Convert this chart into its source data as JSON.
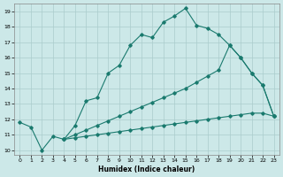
{
  "xlabel": "Humidex (Indice chaleur)",
  "bg_color": "#cce8e8",
  "grid_color": "#aacccc",
  "line_color": "#1a7a6e",
  "xlim": [
    -0.5,
    23.5
  ],
  "ylim": [
    9.7,
    19.5
  ],
  "xticks": [
    0,
    1,
    2,
    3,
    4,
    5,
    6,
    7,
    8,
    9,
    10,
    11,
    12,
    13,
    14,
    15,
    16,
    17,
    18,
    19,
    20,
    21,
    22,
    23
  ],
  "yticks": [
    10,
    11,
    12,
    13,
    14,
    15,
    16,
    17,
    18,
    19
  ],
  "line1_x": [
    0,
    1,
    2,
    3,
    4,
    5,
    6,
    7,
    8,
    9,
    10,
    11,
    12,
    13,
    14,
    15,
    16,
    17,
    18,
    19,
    20,
    21,
    22,
    23
  ],
  "line1_y": [
    11.8,
    11.5,
    10.0,
    10.9,
    10.7,
    11.6,
    13.2,
    13.4,
    15.0,
    15.5,
    16.8,
    17.5,
    17.3,
    18.3,
    18.7,
    19.2,
    18.1,
    17.9,
    17.5,
    16.8,
    16.0,
    15.0,
    14.2,
    12.2
  ],
  "line2_x": [
    4,
    5,
    6,
    7,
    8,
    9,
    10,
    11,
    12,
    13,
    14,
    15,
    16,
    17,
    18,
    19,
    20,
    21,
    22,
    23
  ],
  "line2_y": [
    10.7,
    11.0,
    11.3,
    11.6,
    11.9,
    12.2,
    12.5,
    12.8,
    13.1,
    13.4,
    13.7,
    14.0,
    14.4,
    14.8,
    15.2,
    16.8,
    16.0,
    15.0,
    14.2,
    12.2
  ],
  "line3_x": [
    4,
    5,
    6,
    7,
    8,
    9,
    10,
    11,
    12,
    13,
    14,
    15,
    16,
    17,
    18,
    19,
    20,
    21,
    22,
    23
  ],
  "line3_y": [
    10.7,
    10.8,
    10.9,
    11.0,
    11.1,
    11.2,
    11.3,
    11.4,
    11.5,
    11.6,
    11.7,
    11.8,
    11.9,
    12.0,
    12.1,
    12.2,
    12.3,
    12.4,
    12.4,
    12.2
  ]
}
